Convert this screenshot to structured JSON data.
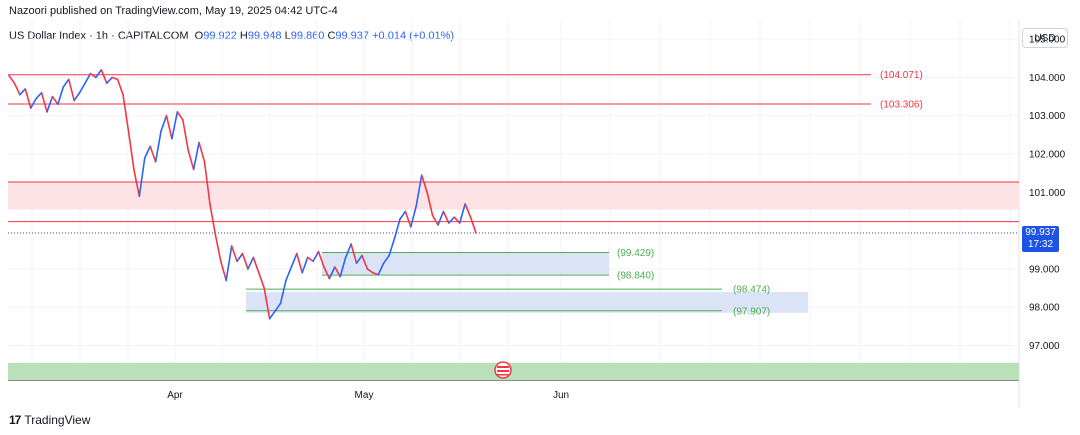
{
  "header": {
    "publisher": "Nazoori published on TradingView.com, May 19, 2025 04:42 UTC-4",
    "symbol": "US Dollar Index · 1h · CAPITALCOM",
    "o_label": "O",
    "o_value": "99.922",
    "h_label": "H",
    "h_value": "99.948",
    "l_label": "L",
    "l_value": "99.860",
    "c_label": "C",
    "c_value": "99.937",
    "change": "+0.014 (+0.01%)"
  },
  "currency": "USD",
  "last_price": {
    "price": "99.937",
    "countdown": "17:32"
  },
  "brand": {
    "name": "TradingView",
    "mark": "17"
  },
  "chart_data": {
    "type": "line",
    "ylim": [
      96.1,
      105.5
    ],
    "y_ticks": [
      {
        "value": 97,
        "label": "97.000"
      },
      {
        "value": 98,
        "label": "98.000"
      },
      {
        "value": 99,
        "label": "99.000"
      },
      {
        "value": 101,
        "label": "101.000"
      },
      {
        "value": 102,
        "label": "102.000"
      },
      {
        "value": 103,
        "label": "103.000"
      },
      {
        "value": 104,
        "label": "104.000"
      },
      {
        "value": 105,
        "label": "105.000"
      }
    ],
    "x_ticks": [
      "Apr",
      "May",
      "Jun"
    ],
    "series": [
      {
        "values": [
          104.05,
          103.85,
          103.55,
          103.7,
          103.2,
          103.45,
          103.6,
          103.1,
          103.5,
          103.3,
          103.75,
          103.95,
          103.4,
          103.6,
          103.85,
          104.1,
          104.0,
          104.2,
          103.85,
          104.0,
          103.95,
          103.55,
          102.6,
          101.6,
          100.9,
          101.9,
          102.2,
          101.8,
          102.6,
          103.0,
          102.4,
          103.1,
          102.9,
          102.1,
          101.6,
          102.3,
          101.8,
          100.7,
          99.9,
          99.2,
          98.7,
          99.6,
          99.2,
          99.4,
          99.0,
          99.3,
          98.9,
          98.5,
          97.7,
          97.9,
          98.1,
          98.7,
          99.05,
          99.4,
          98.9,
          99.3,
          99.2,
          99.45,
          99.05,
          98.75,
          99.05,
          98.8,
          99.3,
          99.65,
          99.15,
          99.35,
          99.0,
          98.9,
          98.85,
          99.15,
          99.35,
          99.8,
          100.3,
          100.5,
          100.1,
          100.65,
          101.45,
          101.0,
          100.4,
          100.15,
          100.5,
          100.2,
          100.35,
          100.2,
          100.7,
          100.35,
          99.937
        ],
        "color_up": "#2962ff",
        "color_down": "#f23645"
      }
    ],
    "resistance_lines": [
      {
        "value": 104.071,
        "label": "(104.071)"
      },
      {
        "value": 103.306,
        "label": "(103.306)"
      }
    ],
    "resistance_zone": {
      "from": 100.55,
      "to": 101.27
    },
    "support_zone_1": {
      "top": 99.429,
      "bottom": 98.84,
      "top_label": "(99.429)",
      "bottom_label": "(98.840)"
    },
    "support_zone_2": {
      "top": 98.474,
      "bottom": 97.907,
      "top_label": "(98.474)",
      "bottom_label": "(97.907)"
    },
    "bottom_zone": {
      "from": 96.2,
      "to": 96.55
    },
    "last_value": 99.937,
    "colors": {
      "resistance": "#f23645",
      "resistance_fill": "#fde3e5",
      "support": "#4caf50",
      "support_fill": "#dbe3f7",
      "bottom_fill": "#b9e0b9",
      "price_tag": "#1e53e5"
    }
  }
}
